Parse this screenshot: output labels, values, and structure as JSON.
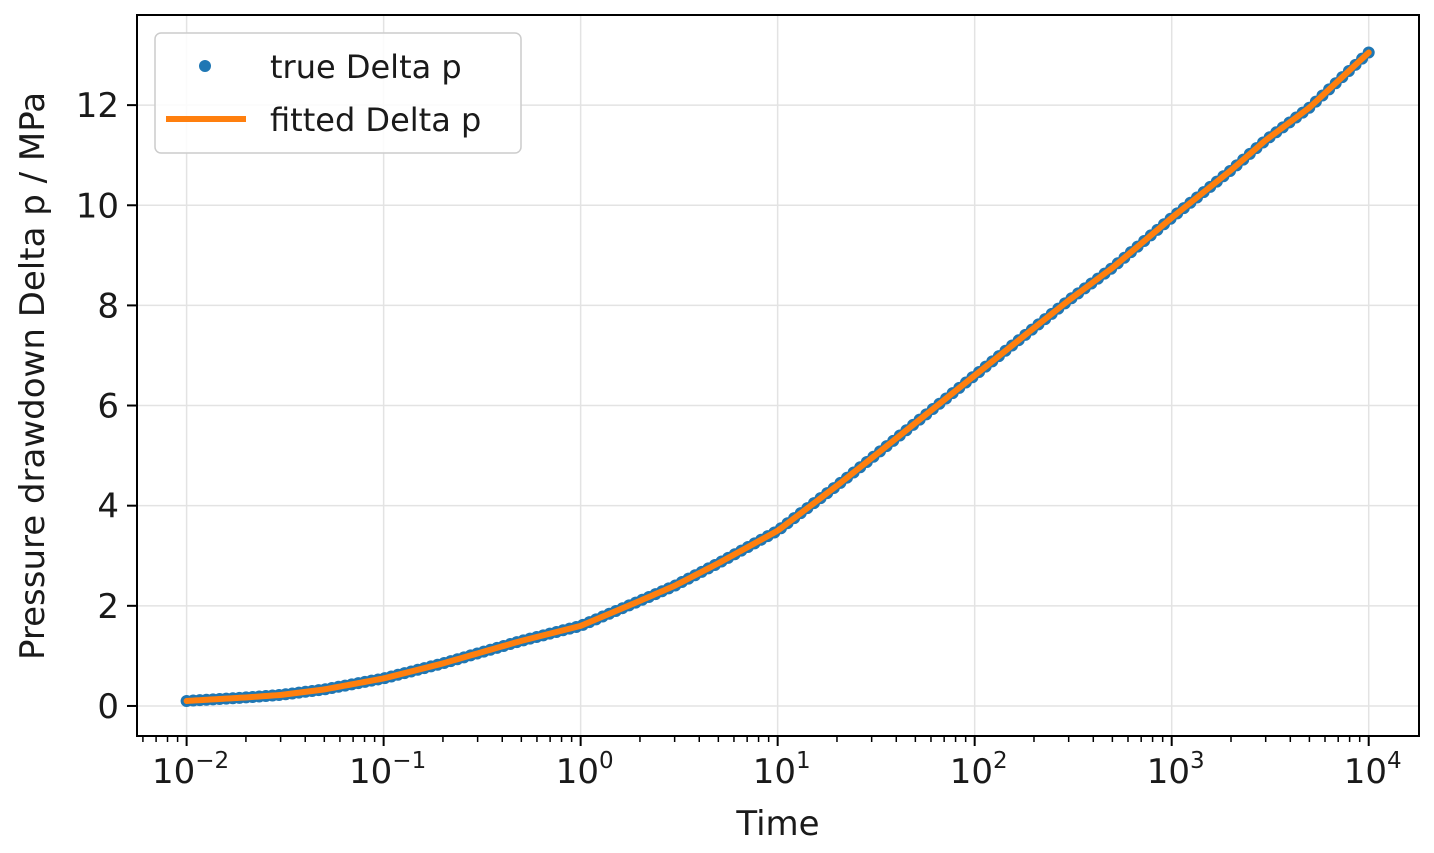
{
  "chart_data": {
    "type": "scatter",
    "xlabel": "Time",
    "ylabel": "Pressure drawdown Delta p / MPa",
    "x_scale": "log",
    "xlim": [
      0.0056,
      18000
    ],
    "ylim": [
      -0.6,
      13.8
    ],
    "x_ticks": [
      {
        "value": 0.01,
        "base": "10",
        "exp": "−2"
      },
      {
        "value": 0.1,
        "base": "10",
        "exp": "−1"
      },
      {
        "value": 1,
        "base": "10",
        "exp": "0"
      },
      {
        "value": 10,
        "base": "10",
        "exp": "1"
      },
      {
        "value": 100,
        "base": "10",
        "exp": "2"
      },
      {
        "value": 1000,
        "base": "10",
        "exp": "3"
      },
      {
        "value": 10000,
        "base": "10",
        "exp": "4"
      }
    ],
    "y_ticks": [
      {
        "value": 0,
        "label": "0"
      },
      {
        "value": 2,
        "label": "2"
      },
      {
        "value": 4,
        "label": "4"
      },
      {
        "value": 6,
        "label": "6"
      },
      {
        "value": 8,
        "label": "8"
      },
      {
        "value": 10,
        "label": "10"
      },
      {
        "value": 12,
        "label": "12"
      }
    ],
    "grid": true,
    "legend_position": "top-left",
    "series": [
      {
        "name": "true Delta p",
        "kind": "markers",
        "color": "#1f77b4",
        "x": [
          0.01,
          0.02,
          0.03,
          0.05,
          0.1,
          0.2,
          0.3,
          0.5,
          1,
          2,
          3,
          5,
          10,
          20,
          30,
          50,
          100,
          200,
          300,
          500,
          1000,
          2000,
          3000,
          5000,
          10000
        ],
        "y": [
          0.1,
          0.17,
          0.22,
          0.33,
          0.55,
          0.85,
          1.05,
          1.3,
          1.6,
          2.1,
          2.4,
          2.85,
          3.5,
          4.4,
          4.95,
          5.65,
          6.6,
          7.55,
          8.1,
          8.75,
          9.75,
          10.7,
          11.3,
          11.95,
          13.05
        ]
      },
      {
        "name": "fitted Delta p",
        "kind": "line",
        "color": "#ff7f0e",
        "x": [
          0.01,
          0.02,
          0.03,
          0.05,
          0.1,
          0.2,
          0.3,
          0.5,
          1,
          2,
          3,
          5,
          10,
          20,
          30,
          50,
          100,
          200,
          300,
          500,
          1000,
          2000,
          3000,
          5000,
          10000
        ],
        "y": [
          0.1,
          0.17,
          0.22,
          0.33,
          0.55,
          0.85,
          1.05,
          1.3,
          1.6,
          2.1,
          2.4,
          2.85,
          3.5,
          4.4,
          4.95,
          5.65,
          6.6,
          7.55,
          8.1,
          8.75,
          9.75,
          10.7,
          11.3,
          11.95,
          13.05
        ]
      }
    ]
  }
}
